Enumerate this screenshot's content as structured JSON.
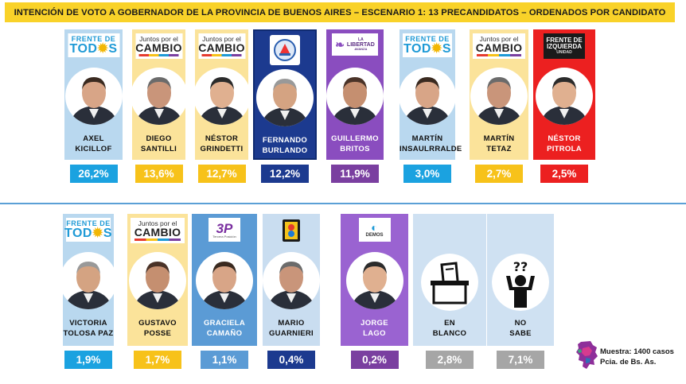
{
  "title": "INTENCIÓN DE VOTO A GOBERNADOR DE LA PROVINCIA DE BUENOS AIRES – ESCENARIO 1: 13 PRECANDIDATOS – ORDENADOS POR CANDIDATO",
  "note": {
    "line1": "Muestra: 1400 casos",
    "line2": "Pcia. de Bs. As."
  },
  "logos": {
    "fdt": {
      "line1": "FRENTE DE",
      "line2a": "TOD",
      "line2b": "S"
    },
    "jxc": {
      "line1": "Juntos por el",
      "line2": "CAMBIO"
    },
    "fit": {
      "line1": "FRENTE DE",
      "line2": "IZQUIERDA",
      "line3": "UNIDAD"
    },
    "lib": {
      "line1": "LA",
      "line2": "LIBERTAD",
      "line3": "AVANZA"
    },
    "tp": {
      "mark": "3P",
      "text": "Tercera Posición"
    },
    "demos": {
      "text": "DEMOS"
    }
  },
  "colors": {
    "title_bg": "#f9d229",
    "fdt": "#b9d8ef",
    "jxc": "#fbe39a",
    "burlando": "#1c3a8f",
    "libertad": "#8a4dbf",
    "fit": "#ec2020",
    "tercera": "#5b9bd5",
    "mario": "#c9ddf0",
    "demos": "#9a63d1",
    "other": "#cfe1f2"
  },
  "chart_data": {
    "type": "bar",
    "title": "INTENCIÓN DE VOTO A GOBERNADOR DE LA PROVINCIA DE BUENOS AIRES – ESCENARIO 1: 13 PRECANDIDATOS – ORDENADOS POR CANDIDATO",
    "unit": "%",
    "categories": [
      "AXEL KICILLOF",
      "DIEGO SANTILLI",
      "NÉSTOR GRINDETTI",
      "FERNANDO BURLANDO",
      "GUILLERMO BRITOS",
      "MARTÍN INSAULRRALDE",
      "MARTÍN TETAZ",
      "NÉSTOR PITROLA",
      "VICTORIA TOLOSA PAZ",
      "GUSTAVO POSSE",
      "GRACIELA CAMAÑO",
      "MARIO GUARNIERI",
      "JORGE LAGO",
      "EN BLANCO",
      "NO SABE"
    ],
    "values": [
      26.2,
      13.6,
      12.7,
      12.2,
      11.9,
      3.0,
      2.7,
      2.5,
      1.9,
      1.7,
      1.1,
      0.4,
      0.2,
      2.8,
      7.1
    ],
    "candidates": [
      {
        "first": "AXEL",
        "last": "KICILLOF",
        "value": 26.2,
        "label": "26,2%",
        "party": "fdt"
      },
      {
        "first": "DIEGO",
        "last": "SANTILLI",
        "value": 13.6,
        "label": "13,6%",
        "party": "jxc"
      },
      {
        "first": "NÉSTOR",
        "last": "GRINDETTI",
        "value": 12.7,
        "label": "12,7%",
        "party": "jxc"
      },
      {
        "first": "FERNANDO",
        "last": "BURLANDO",
        "value": 12.2,
        "label": "12,2%",
        "party": "burlando"
      },
      {
        "first": "GUILLERMO",
        "last": "BRITOS",
        "value": 11.9,
        "label": "11,9%",
        "party": "libertad"
      },
      {
        "first": "MARTÍN",
        "last": "INSAULRRALDE",
        "value": 3.0,
        "label": "3,0%",
        "party": "fdt"
      },
      {
        "first": "MARTÍN",
        "last": "TETAZ",
        "value": 2.7,
        "label": "2,7%",
        "party": "jxc"
      },
      {
        "first": "NÉSTOR",
        "last": "PITROLA",
        "value": 2.5,
        "label": "2,5%",
        "party": "fit"
      },
      {
        "first": "VICTORIA",
        "last": "TOLOSA PAZ",
        "value": 1.9,
        "label": "1,9%",
        "party": "fdt"
      },
      {
        "first": "GUSTAVO",
        "last": "POSSE",
        "value": 1.7,
        "label": "1,7%",
        "party": "jxc"
      },
      {
        "first": "GRACIELA",
        "last": "CAMAÑO",
        "value": 1.1,
        "label": "1,1%",
        "party": "tercera"
      },
      {
        "first": "MARIO",
        "last": "GUARNIERI",
        "value": 0.4,
        "label": "0,4%",
        "party": "mario"
      },
      {
        "first": "JORGE",
        "last": "LAGO",
        "value": 0.2,
        "label": "0,2%",
        "party": "demos"
      },
      {
        "first": "EN",
        "last": "BLANCO",
        "value": 2.8,
        "label": "2,8%",
        "party": "blank"
      },
      {
        "first": "NO",
        "last": "SABE",
        "value": 7.1,
        "label": "7,1%",
        "party": "nosabe"
      }
    ]
  }
}
